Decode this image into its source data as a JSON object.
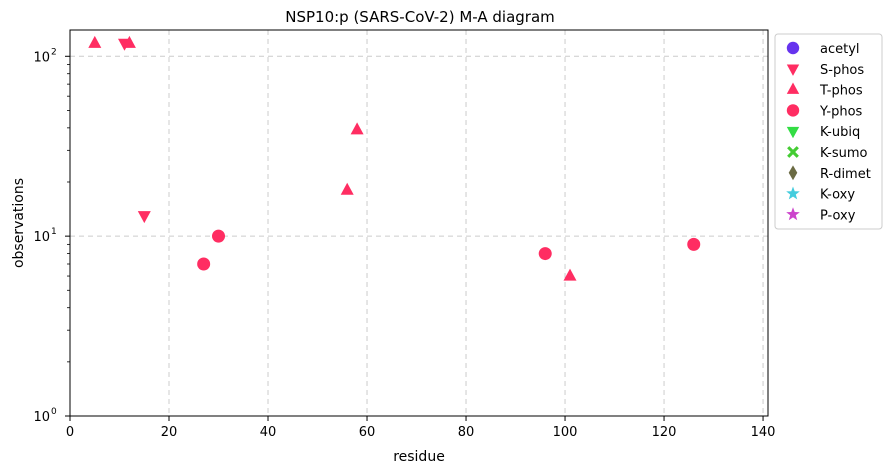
{
  "chart_data": {
    "type": "scatter",
    "title": "NSP10:p (SARS-CoV-2) M-A diagram",
    "xlabel": "residue",
    "ylabel": "observations",
    "xlim": [
      0,
      141
    ],
    "ylim": [
      1,
      140
    ],
    "yscale": "log",
    "grid": true,
    "legend_position": "outside-right",
    "xticks": [
      "0",
      "20",
      "40",
      "60",
      "80",
      "100",
      "120",
      "140"
    ],
    "yticks": [
      {
        "value": 1,
        "base": "10",
        "exp": "0"
      },
      {
        "value": 10,
        "base": "10",
        "exp": "1"
      },
      {
        "value": 100,
        "base": "10",
        "exp": "2"
      }
    ],
    "series": [
      {
        "name": "acetyl",
        "marker": "circle",
        "color": "#6633ee",
        "points": []
      },
      {
        "name": "S-phos",
        "marker": "triangle-down",
        "color": "#ff2d62",
        "points": [
          [
            11,
            118
          ],
          [
            15,
            13
          ]
        ]
      },
      {
        "name": "T-phos",
        "marker": "triangle-up",
        "color": "#ff2d62",
        "points": [
          [
            5,
            118
          ],
          [
            12,
            118
          ],
          [
            56,
            18
          ],
          [
            58,
            39
          ],
          [
            101,
            6
          ]
        ]
      },
      {
        "name": "Y-phos",
        "marker": "circle",
        "color": "#ff2d62",
        "points": [
          [
            27,
            7
          ],
          [
            30,
            10
          ],
          [
            96,
            8
          ],
          [
            126,
            9
          ]
        ]
      },
      {
        "name": "K-ubiq",
        "marker": "triangle-down",
        "color": "#33dd44",
        "points": []
      },
      {
        "name": "K-sumo",
        "marker": "x",
        "color": "#44cc33",
        "points": []
      },
      {
        "name": "R-dimet",
        "marker": "diamond",
        "color": "#6b6b44",
        "points": []
      },
      {
        "name": "K-oxy",
        "marker": "star",
        "color": "#44ccdd",
        "points": []
      },
      {
        "name": "P-oxy",
        "marker": "star",
        "color": "#cc44cc",
        "points": []
      }
    ]
  }
}
